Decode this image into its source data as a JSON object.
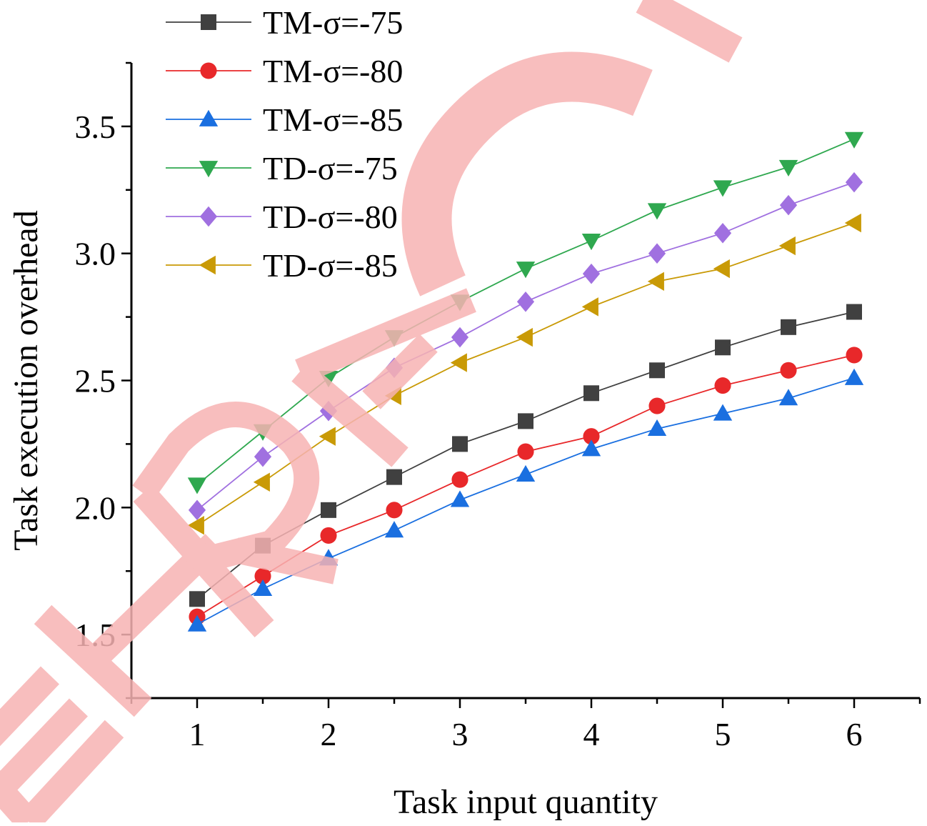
{
  "chart_data": {
    "type": "line",
    "xlabel": "Task input quantity",
    "ylabel": "Task execution overhead",
    "xlim": [
      0.5,
      6.5
    ],
    "ylim": [
      1.25,
      3.75
    ],
    "xticks": [
      1,
      2,
      3,
      4,
      5,
      6
    ],
    "xtick_labels": [
      "1",
      "2",
      "3",
      "4",
      "5",
      "6"
    ],
    "yticks": [
      1.5,
      2.0,
      2.5,
      3.0,
      3.5
    ],
    "ytick_labels": [
      "1.5",
      "2.0",
      "2.5",
      "3.0",
      "3.5"
    ],
    "grid": false,
    "legend_position": "top-left",
    "x": [
      1,
      1.5,
      2,
      2.5,
      3,
      3.5,
      4,
      4.5,
      5,
      5.5,
      6
    ],
    "series": [
      {
        "name": "TM-σ=-75",
        "marker": "square",
        "color": "#404040",
        "values": [
          1.64,
          1.85,
          1.99,
          2.12,
          2.25,
          2.34,
          2.45,
          2.54,
          2.63,
          2.71,
          2.77
        ]
      },
      {
        "name": "TM-σ=-80",
        "marker": "circle",
        "color": "#e8282a",
        "values": [
          1.57,
          1.73,
          1.89,
          1.99,
          2.11,
          2.22,
          2.28,
          2.4,
          2.48,
          2.54,
          2.6
        ]
      },
      {
        "name": "TM-σ=-85",
        "marker": "triangle-up",
        "color": "#1a6fe0",
        "values": [
          1.54,
          1.68,
          1.8,
          1.91,
          2.03,
          2.13,
          2.23,
          2.31,
          2.37,
          2.43,
          2.51
        ]
      },
      {
        "name": "TD-σ=-75",
        "marker": "triangle-down",
        "color": "#2fa84f",
        "values": [
          2.09,
          2.3,
          2.51,
          2.67,
          2.81,
          2.94,
          3.05,
          3.17,
          3.26,
          3.34,
          3.45
        ]
      },
      {
        "name": "TD-σ=-80",
        "marker": "diamond",
        "color": "#a070e0",
        "values": [
          1.99,
          2.2,
          2.38,
          2.55,
          2.67,
          2.81,
          2.92,
          3.0,
          3.08,
          3.19,
          3.28
        ]
      },
      {
        "name": "TD-σ=-85",
        "marker": "triangle-left",
        "color": "#c99a06",
        "values": [
          1.93,
          2.1,
          2.28,
          2.44,
          2.57,
          2.67,
          2.79,
          2.89,
          2.94,
          3.03,
          3.12
        ]
      }
    ]
  },
  "watermark": {
    "text": "RETRACTED",
    "color": "#f7b3b3"
  }
}
